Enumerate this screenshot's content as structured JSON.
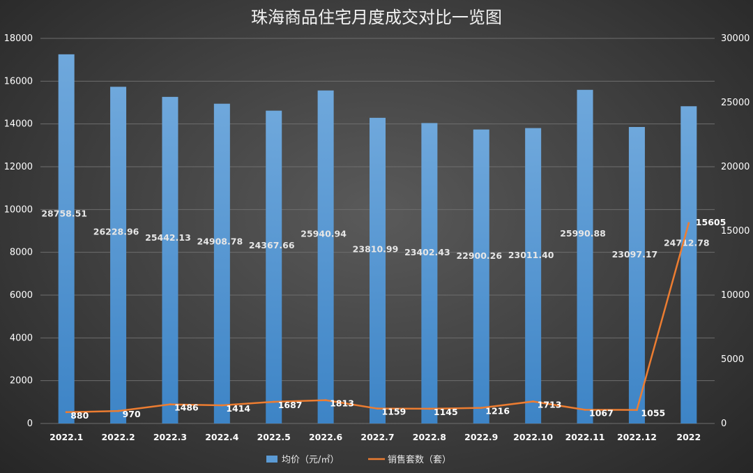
{
  "chart_data": {
    "type": "bar",
    "title": "珠海商品住宅月度成交对比一览图",
    "categories": [
      "2022.1",
      "2022.2",
      "2022.3",
      "2022.4",
      "2022.5",
      "2022.6",
      "2022.7",
      "2022.8",
      "2022.9",
      "2022.10",
      "2022.11",
      "2022.12",
      "2022"
    ],
    "series": [
      {
        "name": "均价（元/㎡）",
        "type": "bar",
        "axis": "right",
        "color": "#5b9bd5",
        "values": [
          28758.51,
          26228.96,
          25442.13,
          24908.78,
          24367.66,
          25940.94,
          23810.99,
          23402.43,
          22900.26,
          23011.4,
          25990.88,
          23097.17,
          24712.78
        ],
        "labels": [
          "28758.51",
          "26228.96",
          "25442.13",
          "24908.78",
          "24367.66",
          "25940.94",
          "23810.99",
          "23402.43",
          "22900.26",
          "23011.40",
          "25990.88",
          "23097.17",
          "24712.78"
        ]
      },
      {
        "name": "销售套数（套）",
        "type": "line",
        "axis": "right",
        "color": "#ed7d31",
        "values": [
          880,
          970,
          1486,
          1414,
          1687,
          1813,
          1159,
          1145,
          1216,
          1713,
          1067,
          1055,
          15605
        ],
        "labels": [
          "880",
          "970",
          "1486",
          "1414",
          "1687",
          "1813",
          "1159",
          "1145",
          "1216",
          "1713",
          "1067",
          "1055",
          "15605"
        ]
      }
    ],
    "left_axis": {
      "ylim": [
        0,
        18000
      ],
      "ticks": [
        "0",
        "2000",
        "4000",
        "6000",
        "8000",
        "10000",
        "12000",
        "14000",
        "16000",
        "18000"
      ]
    },
    "right_axis": {
      "ylim": [
        0,
        30000
      ],
      "ticks": [
        "0",
        "5000",
        "10000",
        "15000",
        "20000",
        "25000",
        "30000"
      ]
    },
    "grid": true,
    "legend_position": "bottom"
  }
}
